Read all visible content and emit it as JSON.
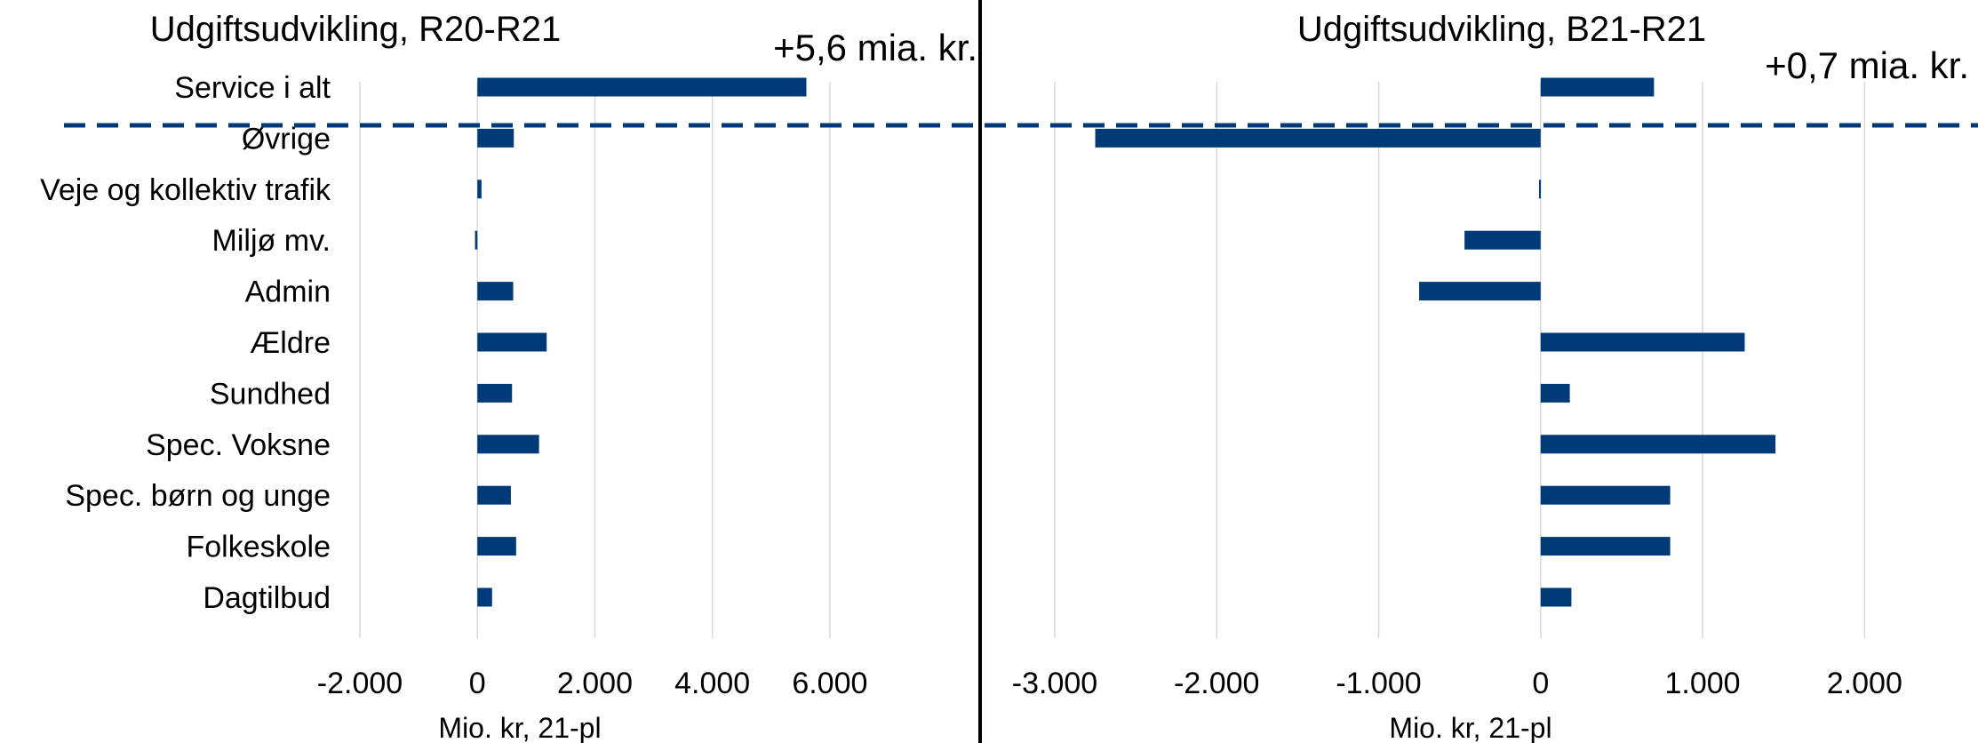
{
  "colors": {
    "bar": "#003A78",
    "grid": "#D9D9D9",
    "divider": "#000000",
    "dashed": "#003A78"
  },
  "chart_data": [
    {
      "type": "bar",
      "orientation": "horizontal",
      "title": "Udgiftsudvikling, R20-R21",
      "annotation": "+5,6 mia. kr.",
      "xlabel": "Mio. kr, 21-pl",
      "categories": [
        "Service i  alt",
        "Øvrige",
        "Veje og kollektiv trafik",
        "Miljø mv.",
        "Admin",
        "Ældre",
        "Sundhed",
        "Spec. Voksne",
        "Spec. børn og unge",
        "Folkeskole",
        "Dagtilbud"
      ],
      "values": [
        5600,
        620,
        70,
        -40,
        610,
        1180,
        590,
        1050,
        570,
        660,
        250
      ],
      "xlim": [
        -2000,
        7000
      ],
      "xticks": [
        -2000,
        0,
        2000,
        4000,
        6000
      ],
      "xtick_labels": [
        "-2.000",
        "0",
        "2.000",
        "4.000",
        "6.000"
      ],
      "grid": true
    },
    {
      "type": "bar",
      "orientation": "horizontal",
      "title": "Udgiftsudvikling, B21-R21",
      "annotation": "+0,7 mia. kr.",
      "xlabel": "Mio. kr, 21-pl",
      "categories": [
        "Service i  alt",
        "Øvrige",
        "Veje og kollektiv trafik",
        "Miljø mv.",
        "Admin",
        "Ældre",
        "Sundhed",
        "Spec. Voksne",
        "Spec. børn og unge",
        "Folkeskole",
        "Dagtilbud"
      ],
      "values": [
        700,
        -2750,
        -10,
        -470,
        -750,
        1260,
        180,
        1450,
        800,
        800,
        190
      ],
      "xlim": [
        -3000,
        2300
      ],
      "xticks": [
        -3000,
        -2000,
        -1000,
        0,
        1000,
        2000
      ],
      "xtick_labels": [
        "-3.000",
        "-2.000",
        "-1.000",
        "0",
        "1.000",
        "2.000"
      ],
      "grid": true
    }
  ]
}
